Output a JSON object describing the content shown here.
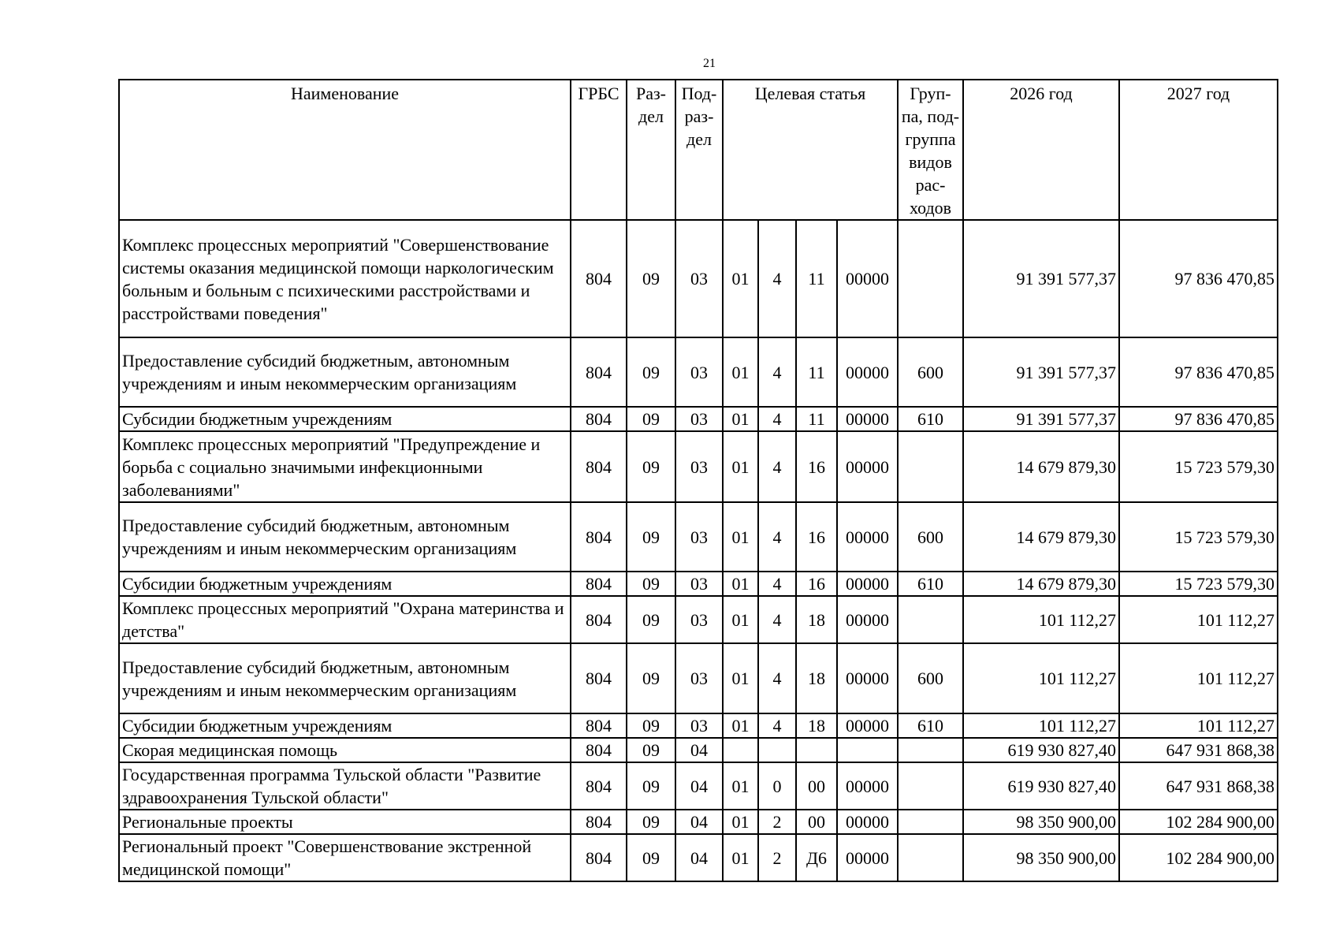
{
  "page_number": "21",
  "headers": {
    "name": "Наименование",
    "grbs": "ГРБС",
    "razdel": "Раз-дел",
    "podrazdel": "Под-раз-дел",
    "celevaya": "Целевая статья",
    "gruppa": "Груп-па, под-группа видов рас-ходов",
    "y2026": "2026 год",
    "y2027": "2027 год"
  },
  "rows": [
    {
      "name": "Комплекс процессных мероприятий \"Совершенствование системы оказания медицинской помощи наркологическим больным и больным с психическими расстройствами и расстройствами поведения\"",
      "grbs": "804",
      "rz": "09",
      "pr": "03",
      "cs1": "01",
      "cs2": "4",
      "cs3": "11",
      "cs4": "00000",
      "vr": "",
      "y2026": "91 391 577,37",
      "y2027": "97 836 470,85"
    },
    {
      "name": "Предоставление субсидий бюджетным, автономным учреждениям и иным некоммерческим организациям",
      "grbs": "804",
      "rz": "09",
      "pr": "03",
      "cs1": "01",
      "cs2": "4",
      "cs3": "11",
      "cs4": "00000",
      "vr": "600",
      "y2026": "91 391 577,37",
      "y2027": "97 836 470,85"
    },
    {
      "name": "Субсидии бюджетным учреждениям",
      "grbs": "804",
      "rz": "09",
      "pr": "03",
      "cs1": "01",
      "cs2": "4",
      "cs3": "11",
      "cs4": "00000",
      "vr": "610",
      "y2026": "91 391 577,37",
      "y2027": "97 836 470,85"
    },
    {
      "name": "Комплекс процессных мероприятий \"Предупреждение и борьба с социально значимыми инфекционными заболеваниями\"",
      "grbs": "804",
      "rz": "09",
      "pr": "03",
      "cs1": "01",
      "cs2": "4",
      "cs3": "16",
      "cs4": "00000",
      "vr": "",
      "y2026": "14 679 879,30",
      "y2027": "15 723 579,30"
    },
    {
      "name": "Предоставление субсидий бюджетным, автономным учреждениям и иным некоммерческим организациям",
      "grbs": "804",
      "rz": "09",
      "pr": "03",
      "cs1": "01",
      "cs2": "4",
      "cs3": "16",
      "cs4": "00000",
      "vr": "600",
      "y2026": "14 679 879,30",
      "y2027": "15 723 579,30"
    },
    {
      "name": "Субсидии бюджетным учреждениям",
      "grbs": "804",
      "rz": "09",
      "pr": "03",
      "cs1": "01",
      "cs2": "4",
      "cs3": "16",
      "cs4": "00000",
      "vr": "610",
      "y2026": "14 679 879,30",
      "y2027": "15 723 579,30"
    },
    {
      "name": "Комплекс процессных мероприятий \"Охрана материнства и детства\"",
      "grbs": "804",
      "rz": "09",
      "pr": "03",
      "cs1": "01",
      "cs2": "4",
      "cs3": "18",
      "cs4": "00000",
      "vr": "",
      "y2026": "101 112,27",
      "y2027": "101 112,27"
    },
    {
      "name": "Предоставление субсидий бюджетным, автономным учреждениям и иным некоммерческим организациям",
      "grbs": "804",
      "rz": "09",
      "pr": "03",
      "cs1": "01",
      "cs2": "4",
      "cs3": "18",
      "cs4": "00000",
      "vr": "600",
      "y2026": "101 112,27",
      "y2027": "101 112,27"
    },
    {
      "name": "Субсидии бюджетным учреждениям",
      "grbs": "804",
      "rz": "09",
      "pr": "03",
      "cs1": "01",
      "cs2": "4",
      "cs3": "18",
      "cs4": "00000",
      "vr": "610",
      "y2026": "101 112,27",
      "y2027": "101 112,27"
    },
    {
      "name": "Скорая медицинская помощь",
      "grbs": "804",
      "rz": "09",
      "pr": "04",
      "cs1": "",
      "cs2": "",
      "cs3": "",
      "cs4": "",
      "vr": "",
      "y2026": "619 930 827,40",
      "y2027": "647 931 868,38"
    },
    {
      "name": "Государственная программа Тульской области \"Развитие здравоохранения Тульской области\"",
      "grbs": "804",
      "rz": "09",
      "pr": "04",
      "cs1": "01",
      "cs2": "0",
      "cs3": "00",
      "cs4": "00000",
      "vr": "",
      "y2026": "619 930 827,40",
      "y2027": "647 931 868,38"
    },
    {
      "name": "Региональные проекты",
      "grbs": "804",
      "rz": "09",
      "pr": "04",
      "cs1": "01",
      "cs2": "2",
      "cs3": "00",
      "cs4": "00000",
      "vr": "",
      "y2026": "98 350 900,00",
      "y2027": "102 284 900,00"
    },
    {
      "name": "Региональный проект \"Совершенствование экстренной медицинской помощи\"",
      "grbs": "804",
      "rz": "09",
      "pr": "04",
      "cs1": "01",
      "cs2": "2",
      "cs3": "Д6",
      "cs4": "00000",
      "vr": "",
      "y2026": "98 350 900,00",
      "y2027": "102 284 900,00"
    }
  ]
}
